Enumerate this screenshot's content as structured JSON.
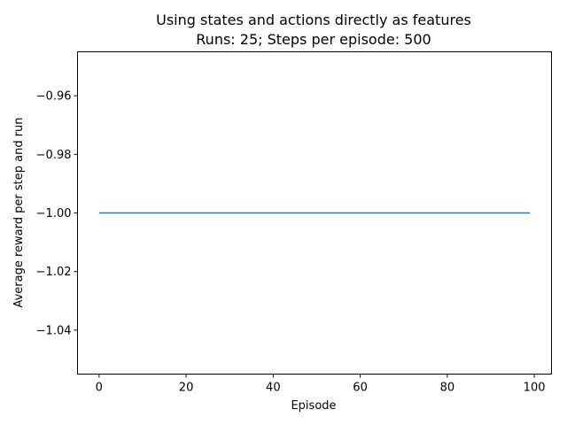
{
  "chart_data": {
    "type": "line",
    "title": "Using states and actions directly as features",
    "subtitle": "Runs: 25; Steps per episode: 500",
    "xlabel": "Episode",
    "ylabel": "Average reward per step and run",
    "xlim": [
      -4.95,
      103.95
    ],
    "ylim": [
      -1.055,
      -0.945
    ],
    "x_ticks": [
      0,
      20,
      40,
      60,
      80,
      100
    ],
    "x_tick_labels": [
      "0",
      "20",
      "40",
      "60",
      "80",
      "100"
    ],
    "y_ticks": [
      -0.96,
      -0.98,
      -1.0,
      -1.02,
      -1.04
    ],
    "y_tick_labels": [
      "−0.96",
      "−0.98",
      "−1.00",
      "−1.02",
      "−1.04"
    ],
    "grid": false,
    "legend": "none",
    "series": [
      {
        "x": [
          0,
          99
        ],
        "y": [
          -1.0,
          -1.0
        ],
        "color": "#1f77b4"
      }
    ]
  }
}
